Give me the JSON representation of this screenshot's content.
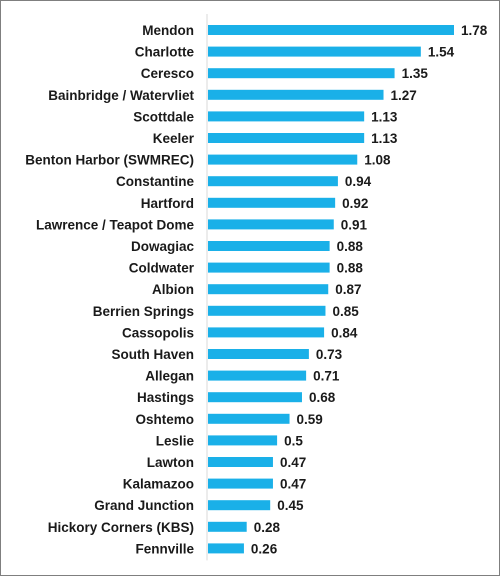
{
  "chart_data": {
    "type": "bar",
    "orientation": "horizontal",
    "bar_color": "#1ab0e8",
    "axis_color": "#d9d9d9",
    "categories": [
      "Mendon",
      "Charlotte",
      "Ceresco",
      "Bainbridge / Watervliet",
      "Scottdale",
      "Keeler",
      "Benton Harbor (SWMREC)",
      "Constantine",
      "Hartford",
      "Lawrence / Teapot Dome",
      "Dowagiac",
      "Coldwater",
      "Albion",
      "Berrien Springs",
      "Cassopolis",
      "South Haven",
      "Allegan",
      "Hastings",
      "Oshtemo",
      "Leslie",
      "Lawton",
      "Kalamazoo",
      "Grand Junction",
      "Hickory Corners (KBS)",
      "Fennville"
    ],
    "values": [
      1.78,
      1.54,
      1.35,
      1.27,
      1.13,
      1.13,
      1.08,
      0.94,
      0.92,
      0.91,
      0.88,
      0.88,
      0.87,
      0.85,
      0.84,
      0.73,
      0.71,
      0.68,
      0.59,
      0.5,
      0.47,
      0.47,
      0.45,
      0.28,
      0.26
    ],
    "value_labels": [
      "1.78",
      "1.54",
      "1.35",
      "1.27",
      "1.13",
      "1.13",
      "1.08",
      "0.94",
      "0.92",
      "0.91",
      "0.88",
      "0.88",
      "0.87",
      "0.85",
      "0.84",
      "0.73",
      "0.71",
      "0.68",
      "0.59",
      "0.5",
      "0.47",
      "0.47",
      "0.45",
      "0.28",
      "0.26"
    ],
    "xlim": [
      0,
      1.78
    ],
    "title": "",
    "xlabel": "",
    "ylabel": "",
    "grid": false,
    "legend": "none"
  }
}
